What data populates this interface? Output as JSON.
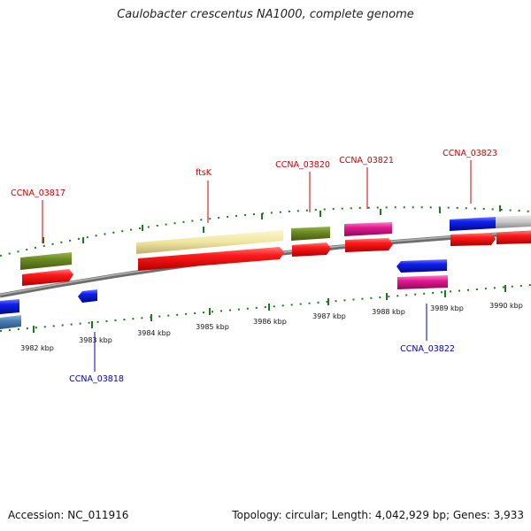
{
  "title": "Caulobacter crescentus NA1000, complete genome",
  "footer": {
    "accession": "Accession: NC_011916",
    "info": "Topology: circular; Length: 4,042,929 bp; Genes: 3,933"
  },
  "scale": [
    "3982 kbp",
    "3983 kbp",
    "3984 kbp",
    "3985 kbp",
    "3986 kbp",
    "3987 kbp",
    "3988 kbp",
    "3989 kbp",
    "3990 kbp"
  ],
  "gene_labels": [
    "CCNA_03817",
    "ftsK",
    "CCNA_03820",
    "CCNA_03821",
    "CCNA_03823",
    "CCNA_03818",
    "CCNA_03822"
  ],
  "colors": {
    "plus_label": "#cc0000",
    "minus_label": "#0000aa",
    "gene_red": "#ee1111",
    "gene_blue": "#0a1ee0",
    "gene_green": "#6b8a22",
    "gene_pink": "#e01890",
    "gene_yellow": "#f0e6a0",
    "gene_steel": "#4a7fb5",
    "gene_gray": "#c8c8c8",
    "tick": "#1f7a1f",
    "backbone": "#7a7a7a"
  }
}
